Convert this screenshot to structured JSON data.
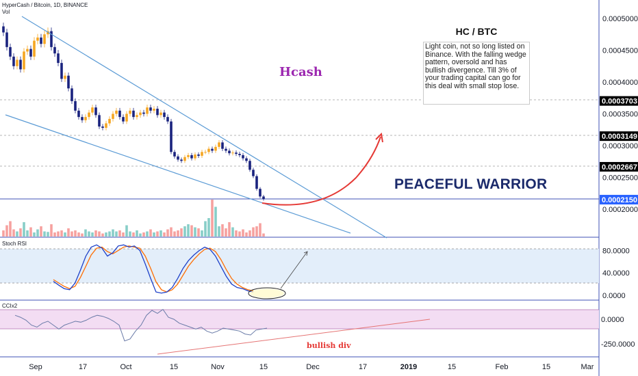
{
  "header": {
    "symbol_line": "HyperCash / Bitcoin, 1D, BINANCE",
    "vol_label": "Vol"
  },
  "annotations": {
    "note_title": "HC / BTC",
    "note_body": "Light coin, not so long listed on Binance. With the falling wedge pattern, oversold and has bullish divergence. Till 3% of your trading capital can go for this deal with small stop lose.",
    "hcash": "Hcash",
    "warrior": "PEACEFUL WARRIOR",
    "bullish_div": "bullish div"
  },
  "indicators": {
    "stoch_label": "Stoch RSI",
    "cci_label": "CCIx2"
  },
  "colors": {
    "up": "#26a69a",
    "down": "#ef5350",
    "candle_up": "#f5a623",
    "candle_down": "#1a237e",
    "trend": "#5b9bd5",
    "hline": "#3f51b5",
    "price_tag": "#000000",
    "arrow": "#e53935",
    "stoch_k": "#1e40c8",
    "stoch_d": "#ff6d00",
    "stoch_band": "#e3eefa",
    "cci_band": "#f3ddf3",
    "cci_line": "#6a7ba8"
  },
  "chart_data": {
    "type": "candlestick",
    "price_axis": {
      "ticks": [
        "0.0005000",
        "0.0004500",
        "0.0004000",
        "0.0003500",
        "0.0003000",
        "0.0002500",
        "0.0002000"
      ],
      "tick_values": [
        0.0005,
        0.00045,
        0.0004,
        0.00035,
        0.0003,
        0.00025,
        0.0002
      ],
      "highlighted": [
        {
          "label": "0.0003703",
          "value": 0.0003703
        },
        {
          "label": "0.0003149",
          "value": 0.0003149
        },
        {
          "label": "0.0002667",
          "value": 0.0002667
        },
        {
          "label": "0.0002150",
          "value": 0.000215
        }
      ]
    },
    "stoch_axis": {
      "ticks": [
        "80.0000",
        "40.0000",
        "0.0000"
      ],
      "values": [
        80,
        40,
        0
      ]
    },
    "cci_axis": {
      "ticks": [
        "0.0000",
        "-250.0000"
      ],
      "values": [
        0,
        -250
      ]
    },
    "x_ticks": [
      "Sep",
      "17",
      "Oct",
      "15",
      "Nov",
      "15",
      "Dec",
      "17",
      "2019",
      "15",
      "Feb",
      "15",
      "Mar"
    ],
    "x_tick_bold": [
      false,
      false,
      false,
      false,
      false,
      false,
      false,
      false,
      true,
      false,
      false,
      false,
      false
    ],
    "closes": [
      0.000478,
      0.000455,
      0.00044,
      0.000425,
      0.000435,
      0.00042,
      0.000448,
      0.000452,
      0.00044,
      0.000465,
      0.00047,
      0.00046,
      0.000475,
      0.00048,
      0.000455,
      0.000445,
      0.00043,
      0.000405,
      0.00041,
      0.00039,
      0.00037,
      0.000355,
      0.000345,
      0.00034,
      0.000345,
      0.000352,
      0.00036,
      0.000348,
      0.00033,
      0.000328,
      0.000335,
      0.000342,
      0.00035,
      0.000355,
      0.000345,
      0.000338,
      0.00035,
      0.000355,
      0.000345,
      0.000348,
      0.000352,
      0.00035,
      0.00036,
      0.000355,
      0.000358,
      0.000348,
      0.000352,
      0.000345,
      0.000338,
      0.00029,
      0.000283,
      0.000278,
      0.000276,
      0.000282,
      0.000285,
      0.00028,
      0.000286,
      0.000284,
      0.00029,
      0.00029,
      0.000295,
      0.000292,
      0.000298,
      0.000305,
      0.000295,
      0.000292,
      0.000288,
      0.000289,
      0.000287,
      0.000285,
      0.00028,
      0.000276,
      0.000262,
      0.000252,
      0.000232,
      0.00022,
      0.000216
    ],
    "volumes": [
      12,
      22,
      30,
      14,
      10,
      16,
      28,
      12,
      18,
      8,
      14,
      20,
      10,
      9,
      24,
      8,
      10,
      12,
      8,
      16,
      10,
      12,
      8,
      6,
      14,
      10,
      8,
      12,
      10,
      6,
      8,
      10,
      14,
      10,
      12,
      8,
      22,
      10,
      8,
      12,
      6,
      8,
      10,
      14,
      8,
      10,
      12,
      8,
      14,
      18,
      10,
      12,
      16,
      20,
      24,
      22,
      18,
      16,
      12,
      30,
      36,
      72,
      58,
      20,
      24,
      16,
      28,
      18,
      12,
      10,
      14,
      8,
      12,
      18,
      20,
      26,
      6
    ],
    "stoch_k": [
      25,
      18,
      12,
      10,
      22,
      45,
      70,
      86,
      90,
      84,
      70,
      76,
      88,
      90,
      86,
      88,
      80,
      56,
      30,
      6,
      4,
      6,
      14,
      30,
      48,
      62,
      72,
      80,
      86,
      82,
      70,
      52,
      34,
      20,
      14,
      12,
      8,
      6
    ],
    "stoch_d": [
      28,
      22,
      16,
      12,
      16,
      32,
      52,
      72,
      84,
      86,
      78,
      74,
      80,
      86,
      88,
      86,
      84,
      70,
      48,
      24,
      10,
      6,
      10,
      20,
      36,
      52,
      64,
      74,
      82,
      84,
      78,
      64,
      46,
      30,
      20,
      14,
      10,
      8
    ],
    "cci": [
      40,
      20,
      -10,
      -60,
      -80,
      -40,
      -20,
      -60,
      -100,
      -60,
      -40,
      -20,
      -30,
      -10,
      20,
      40,
      30,
      10,
      -20,
      -60,
      -220,
      -200,
      -120,
      -60,
      40,
      90,
      60,
      100,
      20,
      0,
      -40,
      -60,
      -80,
      -100,
      -80,
      -120,
      -140,
      -120,
      -90,
      -100,
      -110,
      -120,
      -150,
      -160,
      -110,
      -100,
      -90
    ]
  }
}
